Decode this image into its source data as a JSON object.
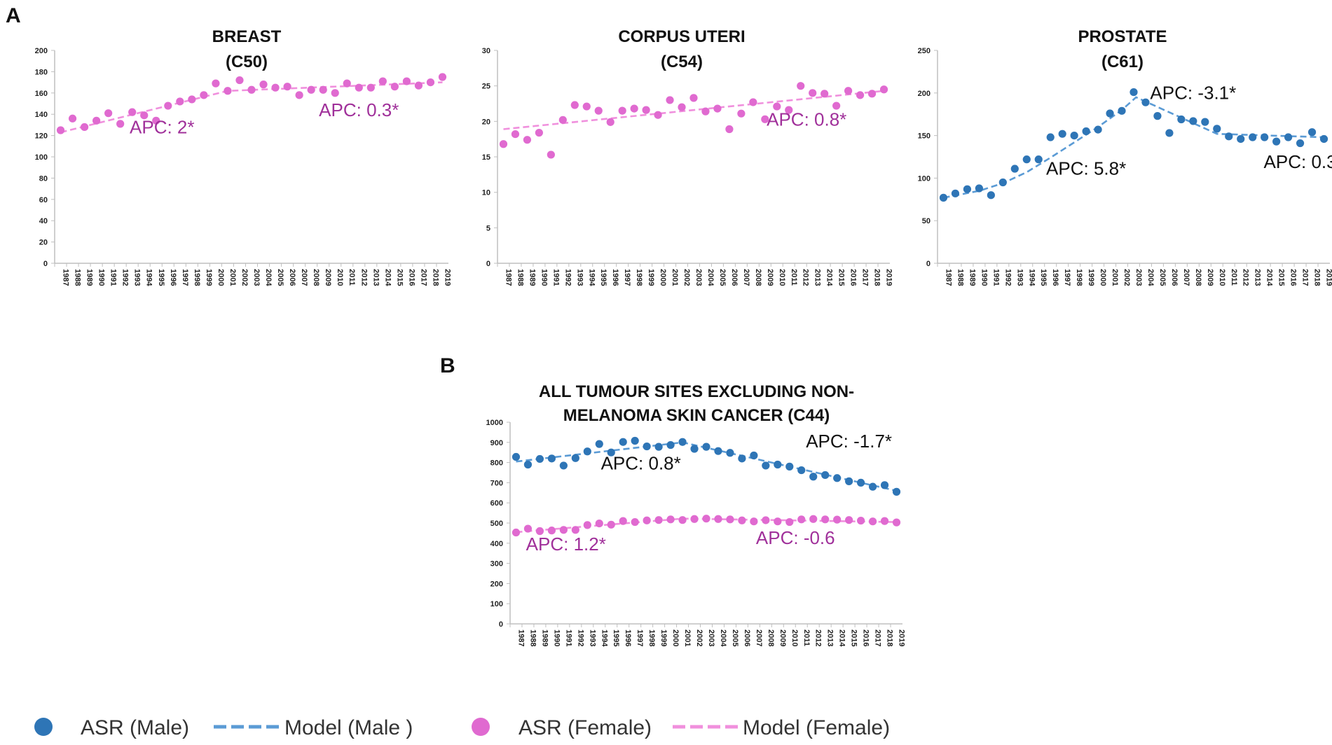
{
  "colors": {
    "male": "#2e75b6",
    "female": "#e06ad0",
    "female_text": "#a0309a"
  },
  "panel_labels": [
    "A",
    "B"
  ],
  "legend": [
    {
      "kind": "dot",
      "color": "#2e75b6",
      "label": "ASR (Male)"
    },
    {
      "kind": "dash",
      "color": "#5b9bd5",
      "label": "Model (Male )"
    },
    {
      "kind": "dot",
      "color": "#e06ad0",
      "label": "ASR (Female)"
    },
    {
      "kind": "dash",
      "color": "#f090dd",
      "label": "Model (Female)"
    }
  ],
  "chart_data": [
    {
      "type": "scatter",
      "title_lines": [
        "BREAST",
        "(C50)"
      ],
      "years": [
        "1987",
        "1988",
        "1989",
        "1990",
        "1991",
        "1992",
        "1993",
        "1994",
        "1995",
        "1996",
        "1997",
        "1998",
        "1999",
        "2000",
        "2001",
        "2002",
        "2003",
        "2004",
        "2005",
        "2006",
        "2007",
        "2008",
        "2009",
        "2010",
        "2011",
        "2012",
        "2013",
        "2014",
        "2015",
        "2016",
        "2017",
        "2018",
        "2019"
      ],
      "ylim": [
        0,
        200
      ],
      "yticks": [
        0,
        20,
        40,
        60,
        80,
        100,
        120,
        140,
        160,
        180,
        200
      ],
      "series": [
        {
          "name": "ASR (Female)",
          "sex": "female",
          "values": [
            125,
            136,
            128,
            134,
            141,
            131,
            142,
            139,
            134,
            148,
            152,
            154,
            158,
            169,
            162,
            172,
            163,
            168,
            165,
            166,
            158,
            163,
            163,
            160,
            169,
            165,
            165,
            171,
            166,
            171,
            167,
            170,
            175
          ],
          "model": [
            {
              "year": 1987,
              "value": 123
            },
            {
              "year": 2001,
              "value": 162
            },
            {
              "year": 2019,
              "value": 170
            }
          ],
          "annotations": [
            {
              "text": "APC: 2*",
              "year": 1995.5,
              "value": 122
            },
            {
              "text": "APC: 0.3*",
              "year": 2012,
              "value": 138
            }
          ]
        }
      ]
    },
    {
      "type": "scatter",
      "title_lines": [
        "CORPUS UTERI",
        "(C54)"
      ],
      "years": [
        "1987",
        "1988",
        "1989",
        "1990",
        "1991",
        "1992",
        "1993",
        "1994",
        "1995",
        "1996",
        "1997",
        "1998",
        "1999",
        "2000",
        "2001",
        "2002",
        "2003",
        "2004",
        "2005",
        "2006",
        "2007",
        "2008",
        "2009",
        "2010",
        "2011",
        "2012",
        "2013",
        "2014",
        "2015",
        "2016",
        "2017",
        "2018",
        "2019"
      ],
      "ylim": [
        0,
        30
      ],
      "yticks": [
        0,
        5,
        10,
        15,
        20,
        25,
        30
      ],
      "series": [
        {
          "name": "ASR (Female)",
          "sex": "female",
          "values": [
            16.8,
            18.2,
            17.4,
            18.4,
            15.3,
            20.2,
            22.3,
            22.1,
            21.5,
            19.9,
            21.5,
            21.8,
            21.6,
            20.9,
            23,
            22,
            23.3,
            21.4,
            21.8,
            18.9,
            21.1,
            22.7,
            20.3,
            22.1,
            21.6,
            25,
            24,
            23.9,
            22.2,
            24.3,
            23.7,
            23.9,
            24.5
          ],
          "model": [
            {
              "year": 1987,
              "value": 18.9
            },
            {
              "year": 2019,
              "value": 24.3
            }
          ],
          "annotations": [
            {
              "text": "APC: 0.8*",
              "year": 2012.5,
              "value": 19.4
            }
          ]
        }
      ]
    },
    {
      "type": "scatter",
      "title_lines": [
        "PROSTATE",
        "(C61)"
      ],
      "years": [
        "1987",
        "1988",
        "1989",
        "1990",
        "1991",
        "1992",
        "1993",
        "1994",
        "1995",
        "1996",
        "1997",
        "1998",
        "1999",
        "2000",
        "2001",
        "2002",
        "2003",
        "2004",
        "2005",
        "2006",
        "2007",
        "2008",
        "2009",
        "2010",
        "2011",
        "2012",
        "2013",
        "2014",
        "2015",
        "2016",
        "2017",
        "2018",
        "2019"
      ],
      "ylim": [
        0,
        250
      ],
      "yticks": [
        0,
        50,
        100,
        150,
        200,
        250
      ],
      "series": [
        {
          "name": "ASR (Male)",
          "sex": "male",
          "values": [
            77,
            82,
            87,
            88,
            80,
            95,
            111,
            122,
            122,
            148,
            152,
            150,
            155,
            157,
            176,
            179,
            201,
            189,
            173,
            153,
            169,
            167,
            166,
            158,
            149,
            146,
            148,
            148,
            143,
            148,
            141,
            154,
            146
          ],
          "model": [
            {
              "year": 1987,
              "value": 77
            },
            {
              "year": 1990,
              "value": 85
            },
            {
              "year": 1992,
              "value": 94
            },
            {
              "year": 1994,
              "value": 107
            },
            {
              "year": 1996,
              "value": 124
            },
            {
              "year": 1998,
              "value": 142
            },
            {
              "year": 2000,
              "value": 160
            },
            {
              "year": 2002,
              "value": 180
            },
            {
              "year": 2003.2,
              "value": 195
            },
            {
              "year": 2010,
              "value": 152
            },
            {
              "year": 2019,
              "value": 148
            }
          ],
          "annotations": [
            {
              "text": "APC: 5.8*",
              "year": 1999,
              "value": 104
            },
            {
              "text": "APC: -3.1*",
              "year": 2008,
              "value": 193
            },
            {
              "text": "APC: 0.3",
              "year": 2017,
              "value": 112
            }
          ]
        }
      ]
    },
    {
      "type": "scatter",
      "title_lines": [
        "ALL TUMOUR SITES EXCLUDING NON-",
        "MELANOMA SKIN CANCER (C44)"
      ],
      "years": [
        "1987",
        "1988",
        "1989",
        "1990",
        "1991",
        "1992",
        "1993",
        "1994",
        "1995",
        "1996",
        "1997",
        "1998",
        "1999",
        "2000",
        "2001",
        "2002",
        "2003",
        "2004",
        "2005",
        "2006",
        "2007",
        "2008",
        "2009",
        "2010",
        "2011",
        "2012",
        "2013",
        "2014",
        "2015",
        "2016",
        "2017",
        "2018",
        "2019"
      ],
      "ylim": [
        0,
        1000
      ],
      "yticks": [
        0,
        100,
        200,
        300,
        400,
        500,
        600,
        700,
        800,
        900,
        1000
      ],
      "series": [
        {
          "name": "ASR (Male)",
          "sex": "male",
          "values": [
            828,
            790,
            818,
            820,
            785,
            822,
            855,
            892,
            850,
            902,
            908,
            880,
            878,
            887,
            902,
            868,
            878,
            857,
            848,
            820,
            835,
            785,
            790,
            780,
            762,
            730,
            738,
            723,
            707,
            700,
            680,
            688,
            655
          ],
          "model": [
            {
              "year": 1987,
              "value": 805
            },
            {
              "year": 2001,
              "value": 900
            },
            {
              "year": 2019,
              "value": 660
            }
          ],
          "annotations": [
            {
              "text": "APC: 0.8*",
              "year": 1997.5,
              "value": 765
            },
            {
              "text": "APC: -1.7*",
              "year": 2015,
              "value": 875
            }
          ]
        },
        {
          "name": "ASR (Female)",
          "sex": "female",
          "values": [
            453,
            472,
            460,
            463,
            466,
            466,
            490,
            498,
            492,
            510,
            505,
            513,
            515,
            518,
            515,
            520,
            522,
            520,
            518,
            513,
            508,
            514,
            508,
            505,
            518,
            520,
            518,
            517,
            515,
            512,
            508,
            510,
            503
          ],
          "model": [
            {
              "year": 1987,
              "value": 455
            },
            {
              "year": 2001,
              "value": 522
            },
            {
              "year": 2019,
              "value": 505
            }
          ],
          "annotations": [
            {
              "text": "APC: 1.2*",
              "year": 1991.2,
              "value": 365
            },
            {
              "text": "APC: -0.6",
              "year": 2010.5,
              "value": 395
            }
          ]
        }
      ]
    }
  ]
}
